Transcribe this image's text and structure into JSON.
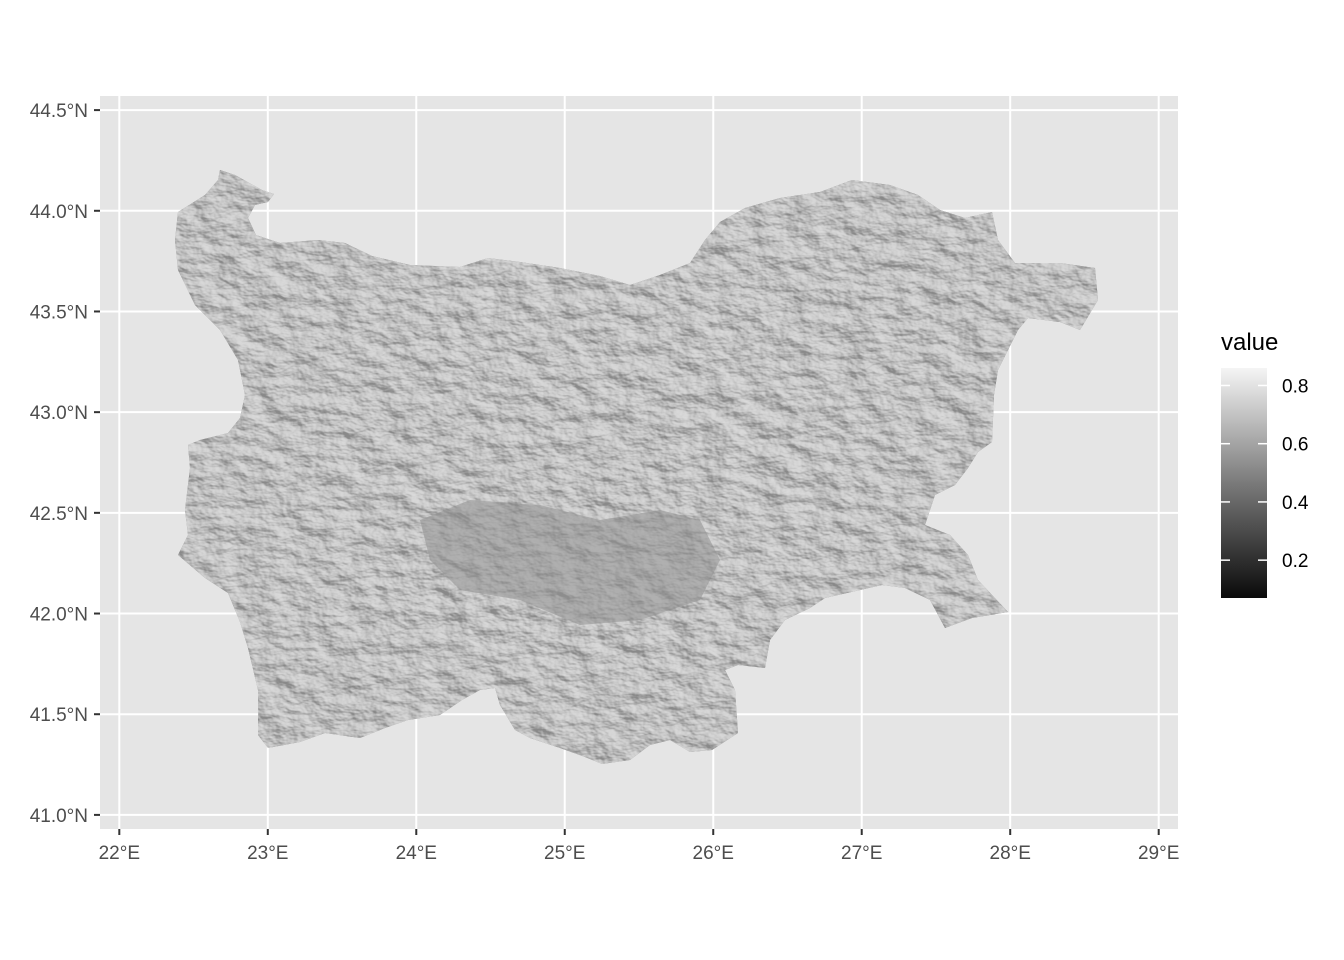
{
  "map": {
    "type": "raster",
    "subject": "hillshade of Bulgaria",
    "x_ticks": [
      "22°E",
      "23°E",
      "24°E",
      "25°E",
      "26°E",
      "27°E",
      "28°E",
      "29°E"
    ],
    "x_values": [
      22,
      23,
      24,
      25,
      26,
      27,
      28,
      29
    ],
    "y_ticks": [
      "41.0°N",
      "41.5°N",
      "42.0°N",
      "42.5°N",
      "43.0°N",
      "43.5°N",
      "44.0°N",
      "44.5°N"
    ],
    "y_values": [
      41.0,
      41.5,
      42.0,
      42.5,
      43.0,
      43.5,
      44.0,
      44.5
    ],
    "xlim": [
      21.87,
      29.13
    ],
    "ylim": [
      40.93,
      44.57
    ],
    "grid": true,
    "panel_background": "#e5e5e5",
    "grid_color": "#ffffff",
    "raster_base_color": "#8f8f8f",
    "legend": {
      "title": "value",
      "position": "right",
      "labels": [
        "0.8",
        "0.6",
        "0.4",
        "0.2"
      ],
      "values": [
        0.8,
        0.6,
        0.4,
        0.2
      ],
      "range": [
        0.07,
        0.86
      ],
      "gradient": [
        "#0a0a0a",
        "#f5f5f5"
      ]
    }
  }
}
